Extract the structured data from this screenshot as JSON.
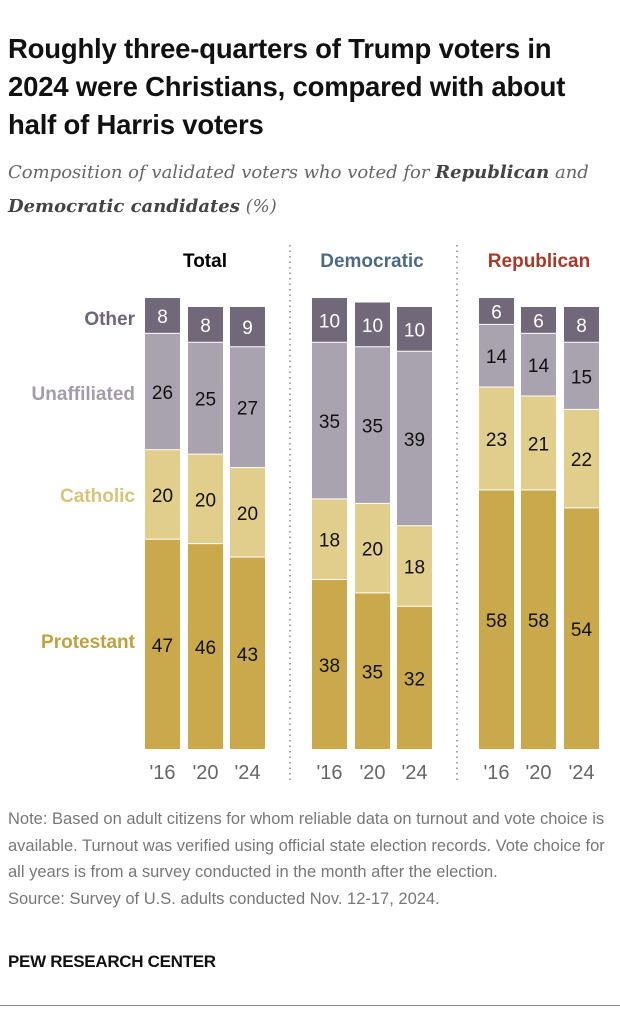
{
  "title": "Roughly three-quarters of Trump voters in 2024 were Christians, compared with about half of Harris voters",
  "subtitle": {
    "pre": "Composition of validated voters who voted for ",
    "b1": "Republican",
    "mid": " and ",
    "b2": "Democratic candidates",
    "post": " (%)"
  },
  "chart_data": {
    "type": "stacked-bar",
    "categories": [
      "'16",
      "'20",
      "'24"
    ],
    "stack_order": [
      "Protestant",
      "Catholic",
      "Unaffiliated",
      "Other"
    ],
    "colors": {
      "Protestant": "#C9A94B",
      "Catholic": "#E1CD8C",
      "Unaffiliated": "#A9A2AF",
      "Other": "#71687A"
    },
    "label_colors": {
      "Protestant": "#C2A040",
      "Catholic": "#D9C37A",
      "Unaffiliated": "#A39CAA",
      "Other": "#6E6577"
    },
    "panels": [
      {
        "name": "Total",
        "color": "#000000",
        "series": {
          "Protestant": [
            47,
            46,
            43
          ],
          "Catholic": [
            20,
            20,
            20
          ],
          "Unaffiliated": [
            26,
            25,
            27
          ],
          "Other": [
            8,
            8,
            9
          ]
        }
      },
      {
        "name": "Democratic",
        "color": "#4D6A85",
        "series": {
          "Protestant": [
            38,
            35,
            32
          ],
          "Catholic": [
            18,
            20,
            18
          ],
          "Unaffiliated": [
            35,
            35,
            39
          ],
          "Other": [
            10,
            10,
            10
          ]
        }
      },
      {
        "name": "Republican",
        "color": "#A63A28",
        "series": {
          "Protestant": [
            58,
            58,
            54
          ],
          "Catholic": [
            23,
            21,
            22
          ],
          "Unaffiliated": [
            14,
            14,
            15
          ],
          "Other": [
            6,
            6,
            8
          ]
        }
      }
    ]
  },
  "note": "Note: Based on adult citizens for whom reliable data on turnout and vote choice is available. Turnout was verified using official state election records. Vote choice for all years is from a survey conducted in the month after the election.",
  "source": "Source: Survey of U.S. adults conducted Nov. 12-17, 2024.",
  "logo": "PEW RESEARCH CENTER"
}
